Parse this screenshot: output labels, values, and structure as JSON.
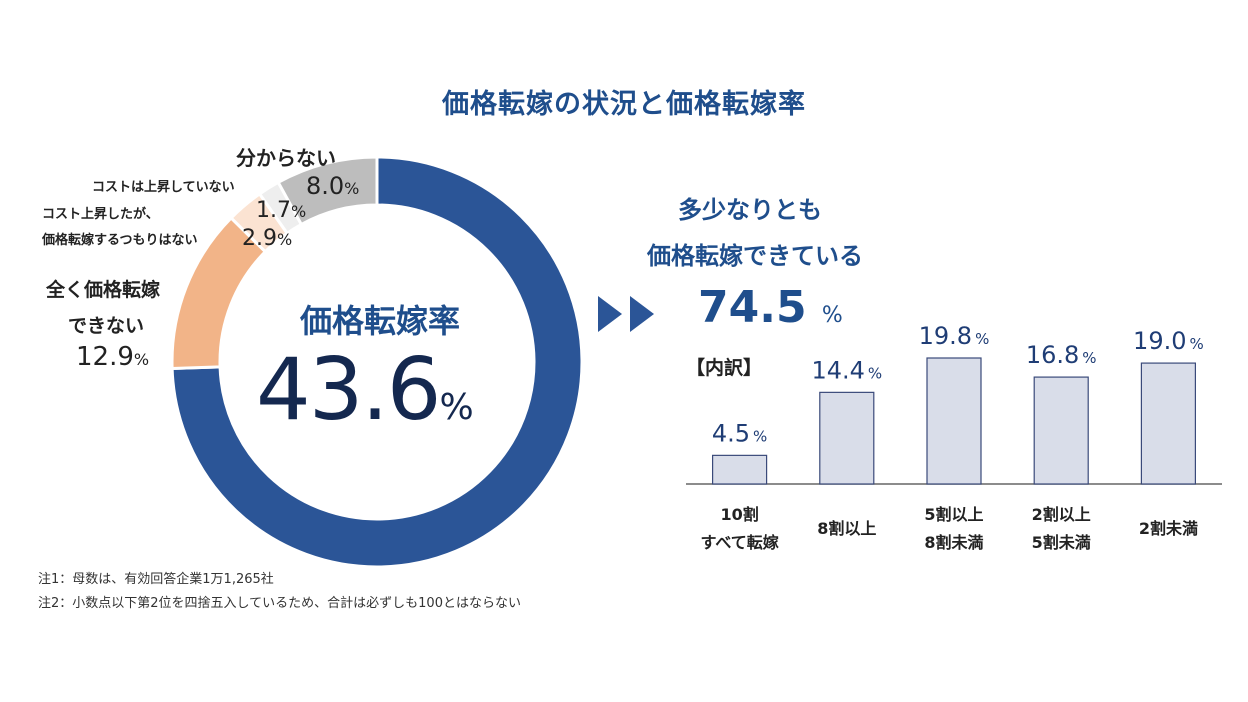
{
  "title": "価格転嫁の状況と価格転嫁率",
  "donut": {
    "center_label": "価格転嫁率",
    "center_value": "43.6",
    "center_unit": "%",
    "segments": [
      {
        "name": "多少なりとも価格転嫁できている",
        "value": 74.5,
        "color": "#2b5597"
      },
      {
        "name": "全く価格転嫁できない",
        "label_lines": [
          "全く価格転嫁",
          "できない"
        ],
        "value_text": "12.9",
        "unit": "%",
        "value": 12.9,
        "color": "#f2b488"
      },
      {
        "name": "コスト上昇したが、価格転嫁するつもりはない",
        "label_lines": [
          "コスト上昇したが、",
          "価格転嫁するつもりはない"
        ],
        "value_text": "2.9",
        "unit": "%",
        "value": 2.9,
        "color": "#fbe3d2"
      },
      {
        "name": "コストは上昇していない",
        "label_lines": [
          "コストは上昇していない"
        ],
        "value_text": "1.7",
        "unit": "%",
        "value": 1.7,
        "color": "#eeeeee"
      },
      {
        "name": "分からない",
        "label_lines": [
          "分からない"
        ],
        "value_text": "8.0",
        "unit": "%",
        "value": 8.0,
        "color": "#bdbdbd"
      }
    ]
  },
  "right": {
    "heading_line1": "多少なりとも",
    "heading_line2": "価格転嫁できている",
    "value": "74.5",
    "unit": "%",
    "breakdown_label": "【内訳】"
  },
  "chart_data": [
    {
      "type": "pie",
      "categories": [
        "多少なりとも価格転嫁できている",
        "全く価格転嫁できない",
        "コスト上昇したが、価格転嫁するつもりはない",
        "コストは上昇していない",
        "分からない"
      ],
      "values": [
        74.5,
        12.9,
        2.9,
        1.7,
        8.0
      ]
    },
    {
      "type": "bar",
      "categories": [
        [
          "10割",
          "すべて転嫁"
        ],
        [
          "8割以上"
        ],
        [
          "5割以上",
          "8割未満"
        ],
        [
          "2割以上",
          "5割未満"
        ],
        [
          "2割未満"
        ]
      ],
      "values": [
        4.5,
        14.4,
        19.8,
        16.8,
        19.0
      ],
      "value_labels": [
        "4.5",
        "14.4",
        "19.8",
        "16.8",
        "19.0"
      ],
      "unit": "%",
      "ylim": [
        0,
        22
      ],
      "bar_color": "#d9dde9",
      "bar_stroke": "#3a4a7a"
    }
  ],
  "notes": [
    "注1：母数は、有効回答企業1万1,265社",
    "注2：小数点以下第2位を四捨五入しているため、合計は必ずしも100とはならない"
  ],
  "colors": {
    "accent": "#1f4e8c",
    "dark": "#14284f",
    "arrow": "#2b5597"
  }
}
